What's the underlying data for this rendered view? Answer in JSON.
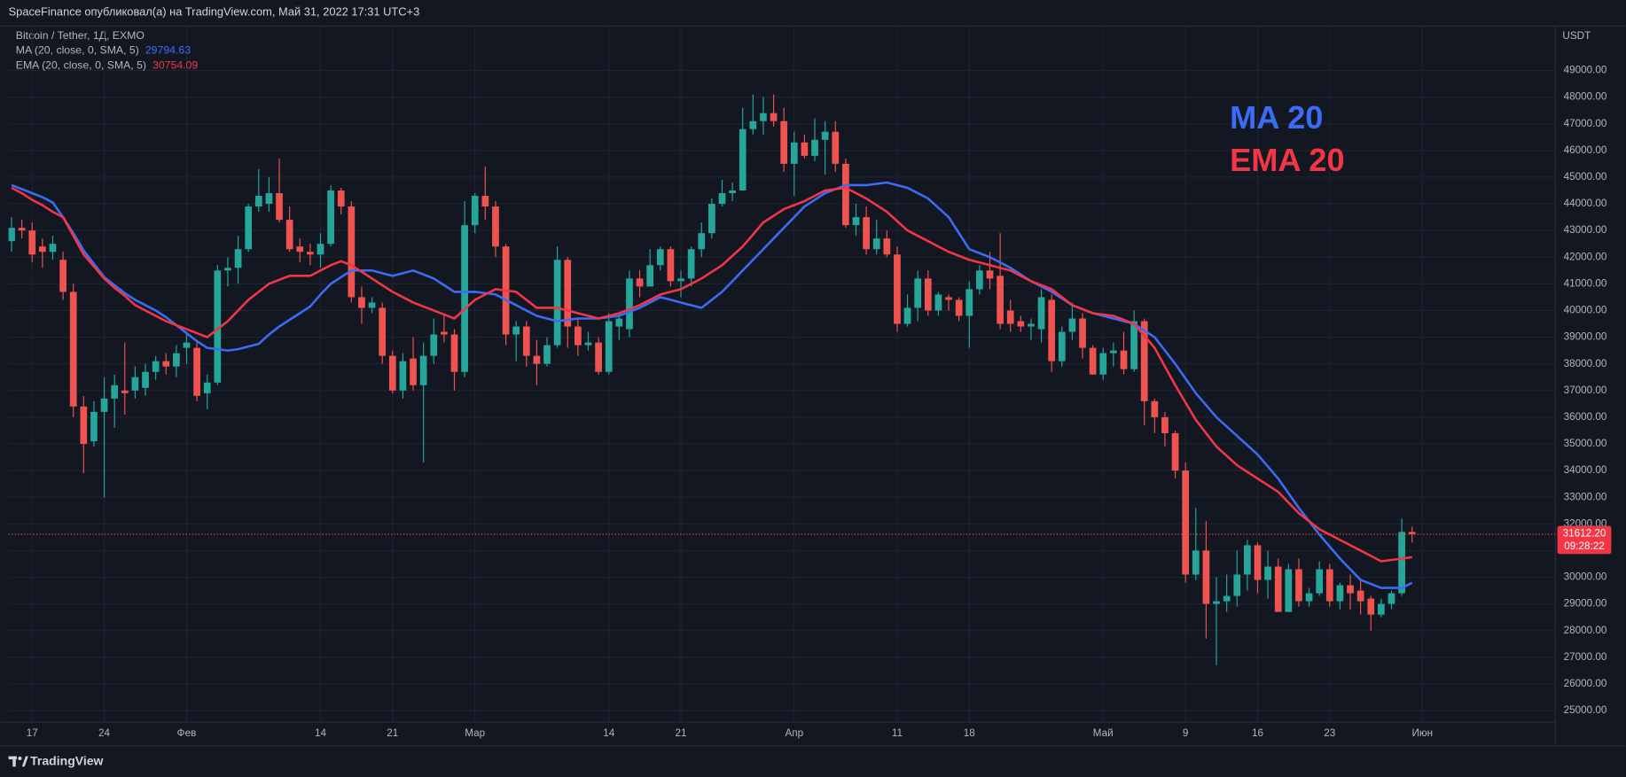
{
  "header": {
    "publisher_line": "SpaceFinance опубликовал(а) на TradingView.com, Май 31, 2022 17:31 UTC+3"
  },
  "footer": {
    "brand": "TradingView"
  },
  "chart_data": {
    "type": "candlestick",
    "title": "Bitcoin / Tether, 1Д, EXMO",
    "y_axis_label": "USDT",
    "up_color": "#26a69a",
    "down_color": "#ef5350",
    "grid": true,
    "xlim": [
      "2022-01-14",
      "2022-06-13"
    ],
    "ylim": [
      24570,
      50670
    ],
    "xticks": [
      {
        "value": "2022-01-17",
        "label": "17"
      },
      {
        "value": "2022-01-24",
        "label": "24"
      },
      {
        "value": "2022-02-01",
        "label": "Фев"
      },
      {
        "value": "2022-02-14",
        "label": "14"
      },
      {
        "value": "2022-02-21",
        "label": "21"
      },
      {
        "value": "2022-03-01",
        "label": "Мар"
      },
      {
        "value": "2022-03-14",
        "label": "14"
      },
      {
        "value": "2022-03-21",
        "label": "21"
      },
      {
        "value": "2022-04-01",
        "label": "Апр"
      },
      {
        "value": "2022-04-11",
        "label": "11"
      },
      {
        "value": "2022-04-18",
        "label": "18"
      },
      {
        "value": "2022-05-01",
        "label": "Май"
      },
      {
        "value": "2022-05-09",
        "label": "9"
      },
      {
        "value": "2022-05-16",
        "label": "16"
      },
      {
        "value": "2022-05-23",
        "label": "23"
      },
      {
        "value": "2022-06-01",
        "label": "Июн"
      }
    ],
    "yticks": [
      {
        "value": 25000,
        "label": "25000.00"
      },
      {
        "value": 26000,
        "label": "26000.00"
      },
      {
        "value": 27000,
        "label": "27000.00"
      },
      {
        "value": 28000,
        "label": "28000.00"
      },
      {
        "value": 29000,
        "label": "29000.00"
      },
      {
        "value": 30000,
        "label": "30000.00"
      },
      {
        "value": 31000,
        "label": "31000.00"
      },
      {
        "value": 32000,
        "label": "32000.00"
      },
      {
        "value": 33000,
        "label": "33000.00"
      },
      {
        "value": 34000,
        "label": "34000.00"
      },
      {
        "value": 35000,
        "label": "35000.00"
      },
      {
        "value": 36000,
        "label": "36000.00"
      },
      {
        "value": 37000,
        "label": "37000.00"
      },
      {
        "value": 38000,
        "label": "38000.00"
      },
      {
        "value": 39000,
        "label": "39000.00"
      },
      {
        "value": 40000,
        "label": "40000.00"
      },
      {
        "value": 41000,
        "label": "41000.00"
      },
      {
        "value": 42000,
        "label": "42000.00"
      },
      {
        "value": 43000,
        "label": "43000.00"
      },
      {
        "value": 44000,
        "label": "44000.00"
      },
      {
        "value": 45000,
        "label": "45000.00"
      },
      {
        "value": 46000,
        "label": "46000.00"
      },
      {
        "value": 47000,
        "label": "47000.00"
      },
      {
        "value": 48000,
        "label": "48000.00"
      },
      {
        "value": 49000,
        "label": "49000.00"
      }
    ],
    "x": [
      "2022-01-15",
      "2022-01-16",
      "2022-01-17",
      "2022-01-18",
      "2022-01-19",
      "2022-01-20",
      "2022-01-21",
      "2022-01-22",
      "2022-01-23",
      "2022-01-24",
      "2022-01-25",
      "2022-01-26",
      "2022-01-27",
      "2022-01-28",
      "2022-01-29",
      "2022-01-30",
      "2022-01-31",
      "2022-02-01",
      "2022-02-02",
      "2022-02-03",
      "2022-02-04",
      "2022-02-05",
      "2022-02-06",
      "2022-02-07",
      "2022-02-08",
      "2022-02-09",
      "2022-02-10",
      "2022-02-11",
      "2022-02-12",
      "2022-02-13",
      "2022-02-14",
      "2022-02-15",
      "2022-02-16",
      "2022-02-17",
      "2022-02-18",
      "2022-02-19",
      "2022-02-20",
      "2022-02-21",
      "2022-02-22",
      "2022-02-23",
      "2022-02-24",
      "2022-02-25",
      "2022-02-26",
      "2022-02-27",
      "2022-02-28",
      "2022-03-01",
      "2022-03-02",
      "2022-03-03",
      "2022-03-04",
      "2022-03-05",
      "2022-03-06",
      "2022-03-07",
      "2022-03-08",
      "2022-03-09",
      "2022-03-10",
      "2022-03-11",
      "2022-03-12",
      "2022-03-13",
      "2022-03-14",
      "2022-03-15",
      "2022-03-16",
      "2022-03-17",
      "2022-03-18",
      "2022-03-19",
      "2022-03-20",
      "2022-03-21",
      "2022-03-22",
      "2022-03-23",
      "2022-03-24",
      "2022-03-25",
      "2022-03-26",
      "2022-03-27",
      "2022-03-28",
      "2022-03-29",
      "2022-03-30",
      "2022-03-31",
      "2022-04-01",
      "2022-04-02",
      "2022-04-03",
      "2022-04-04",
      "2022-04-05",
      "2022-04-06",
      "2022-04-07",
      "2022-04-08",
      "2022-04-09",
      "2022-04-10",
      "2022-04-11",
      "2022-04-12",
      "2022-04-13",
      "2022-04-14",
      "2022-04-15",
      "2022-04-16",
      "2022-04-17",
      "2022-04-18",
      "2022-04-19",
      "2022-04-20",
      "2022-04-21",
      "2022-04-22",
      "2022-04-23",
      "2022-04-24",
      "2022-04-25",
      "2022-04-26",
      "2022-04-27",
      "2022-04-28",
      "2022-04-29",
      "2022-04-30",
      "2022-05-01",
      "2022-05-02",
      "2022-05-03",
      "2022-05-04",
      "2022-05-05",
      "2022-05-06",
      "2022-05-07",
      "2022-05-08",
      "2022-05-09",
      "2022-05-10",
      "2022-05-11",
      "2022-05-12",
      "2022-05-13",
      "2022-05-14",
      "2022-05-15",
      "2022-05-16",
      "2022-05-17",
      "2022-05-18",
      "2022-05-19",
      "2022-05-20",
      "2022-05-21",
      "2022-05-22",
      "2022-05-23",
      "2022-05-24",
      "2022-05-25",
      "2022-05-26",
      "2022-05-27",
      "2022-05-28",
      "2022-05-29",
      "2022-05-30",
      "2022-05-31"
    ],
    "open": [
      42600,
      43100,
      43000,
      42400,
      42200,
      41900,
      40700,
      36400,
      35100,
      36200,
      36700,
      37000,
      37000,
      37100,
      37700,
      38100,
      37900,
      38600,
      38600,
      36900,
      37300,
      41500,
      41600,
      42300,
      43900,
      44000,
      44400,
      43400,
      42400,
      42200,
      42100,
      42500,
      44500,
      43900,
      40500,
      40100,
      40100,
      38300,
      37000,
      38200,
      37200,
      38300,
      39200,
      39100,
      37700,
      43200,
      44300,
      43900,
      42400,
      39100,
      39400,
      38300,
      38000,
      38700,
      41900,
      39400,
      38700,
      38800,
      37700,
      39400,
      39300,
      41200,
      40900,
      41700,
      42300,
      41100,
      41200,
      42300,
      42900,
      44000,
      44400,
      44500,
      46800,
      47100,
      47400,
      47100,
      45500,
      46300,
      45800,
      46400,
      46700,
      45500,
      43200,
      43500,
      42300,
      42700,
      42100,
      39500,
      40100,
      41200,
      40000,
      40500,
      40400,
      39800,
      40800,
      41500,
      41300,
      40000,
      39600,
      39400,
      39300,
      40400,
      38100,
      39200,
      39700,
      38600,
      37600,
      38400,
      38500,
      37800,
      39600,
      36600,
      36000,
      35400,
      34000,
      30100,
      31000,
      29000,
      29100,
      29300,
      30100,
      31200,
      29900,
      30400,
      28700,
      30300,
      29100,
      29400,
      30300,
      29100,
      29700,
      29500,
      29200,
      28600,
      29000,
      29400,
      31700
    ],
    "high": [
      43500,
      43400,
      43300,
      42700,
      42800,
      42200,
      41000,
      36800,
      36600,
      37500,
      37600,
      38800,
      37900,
      38000,
      38300,
      38400,
      38700,
      39200,
      38900,
      37600,
      41700,
      42000,
      42800,
      44000,
      45300,
      45000,
      45700,
      43900,
      42700,
      42500,
      42900,
      44700,
      44600,
      44100,
      40900,
      40500,
      40300,
      38500,
      38400,
      39000,
      38800,
      39700,
      39800,
      39300,
      44100,
      44400,
      45400,
      44100,
      42500,
      39600,
      39600,
      38900,
      39000,
      42400,
      42000,
      39700,
      39200,
      39000,
      39900,
      39900,
      41500,
      41500,
      42300,
      42400,
      42400,
      41500,
      42400,
      43300,
      44200,
      44900,
      44800,
      47600,
      48100,
      48000,
      48100,
      47600,
      46700,
      46600,
      47200,
      47100,
      47100,
      45700,
      44000,
      43900,
      43400,
      43000,
      42400,
      40600,
      41500,
      41500,
      40700,
      40600,
      40500,
      41100,
      41700,
      42200,
      42900,
      40400,
      39800,
      39700,
      40800,
      40600,
      39400,
      40300,
      39900,
      38700,
      38600,
      38800,
      39200,
      40000,
      39700,
      36700,
      36200,
      35500,
      34300,
      32600,
      32100,
      30000,
      30100,
      31000,
      31400,
      31300,
      31000,
      30700,
      30500,
      30700,
      29600,
      30600,
      30500,
      29800,
      30100,
      29900,
      29300,
      29200,
      29500,
      32200,
      31900
    ],
    "low": [
      42200,
      42700,
      41800,
      41600,
      41900,
      40400,
      36000,
      33900,
      34900,
      33000,
      35600,
      36100,
      36700,
      36800,
      37400,
      37600,
      37500,
      38000,
      36600,
      36300,
      37200,
      40900,
      41000,
      42200,
      43700,
      43700,
      43300,
      42200,
      41800,
      41700,
      41600,
      42400,
      43600,
      40300,
      39500,
      39900,
      38000,
      36900,
      36700,
      37000,
      34300,
      38000,
      38800,
      37000,
      37500,
      42900,
      43400,
      42000,
      38700,
      38100,
      37900,
      37200,
      37900,
      38600,
      38600,
      38300,
      38500,
      37600,
      37600,
      38900,
      39000,
      40500,
      40900,
      41500,
      40900,
      40500,
      40900,
      42000,
      42700,
      43900,
      44100,
      44500,
      46600,
      46600,
      46900,
      45200,
      44300,
      45700,
      45600,
      45100,
      45200,
      43100,
      42800,
      42100,
      42100,
      42000,
      39200,
      39400,
      39600,
      39800,
      39800,
      40000,
      39600,
      38600,
      40600,
      40800,
      39300,
      39200,
      39200,
      38900,
      38800,
      37700,
      37900,
      38900,
      38200,
      37600,
      37400,
      37900,
      37600,
      37700,
      35700,
      35400,
      34900,
      33700,
      29800,
      29900,
      27700,
      26700,
      28700,
      28900,
      29500,
      29400,
      29200,
      28700,
      28700,
      28900,
      28900,
      29300,
      28900,
      28800,
      28800,
      28600,
      28000,
      28500,
      28800,
      29300,
      31300
    ],
    "close": [
      43100,
      43000,
      42100,
      42200,
      42500,
      40700,
      36400,
      35000,
      36200,
      36700,
      37200,
      36900,
      37500,
      37700,
      38100,
      37900,
      38400,
      38800,
      36800,
      37300,
      41500,
      41600,
      42300,
      43900,
      44300,
      44400,
      43400,
      42300,
      42200,
      42100,
      42500,
      44500,
      43900,
      40500,
      40100,
      40300,
      38300,
      37000,
      38100,
      37200,
      38300,
      39100,
      39100,
      37700,
      43200,
      44300,
      43900,
      42400,
      39100,
      39400,
      38300,
      38000,
      38700,
      41900,
      39400,
      38700,
      38800,
      37700,
      39600,
      39700,
      41200,
      40900,
      41700,
      42300,
      41100,
      41200,
      42300,
      42900,
      44000,
      44400,
      44500,
      46800,
      47100,
      47400,
      47100,
      45500,
      46300,
      45800,
      46400,
      46700,
      45500,
      43200,
      43500,
      42300,
      42700,
      42100,
      39500,
      40100,
      41200,
      40000,
      40600,
      40400,
      39800,
      40800,
      41500,
      41200,
      39500,
      39500,
      39400,
      39500,
      40500,
      38100,
      39200,
      39700,
      38600,
      37600,
      38400,
      38500,
      37800,
      39600,
      36600,
      36000,
      35400,
      34000,
      30100,
      31000,
      29000,
      29100,
      29300,
      30100,
      31200,
      29900,
      30400,
      28700,
      30300,
      29100,
      29400,
      30300,
      29100,
      29700,
      29400,
      29100,
      28600,
      29000,
      29400,
      31700,
      31612.2
    ],
    "series": [
      {
        "name": "MA (20, close, 0, SMA, 5)",
        "color": "#3a6cf4",
        "values": [
          44700,
          44550,
          44400,
          44250,
          44050,
          43500,
          42900,
          42250,
          41750,
          41250,
          40950,
          40650,
          40400,
          40200,
          40000,
          39750,
          39450,
          39150,
          38850,
          38600,
          38550,
          38500,
          38550,
          38650,
          38750,
          39100,
          39400,
          39650,
          39900,
          40150,
          40600,
          41000,
          41250,
          41500,
          41500,
          41500,
          41400,
          41300,
          41400,
          41500,
          41350,
          41200,
          40950,
          40700,
          40700,
          40700,
          40650,
          40600,
          40400,
          40200,
          40000,
          39800,
          39700,
          39600,
          39650,
          39700,
          39700,
          39700,
          39750,
          39800,
          39950,
          40100,
          40300,
          40500,
          40400,
          40300,
          40200,
          40100,
          40400,
          40700,
          41100,
          41500,
          41900,
          42300,
          42700,
          43100,
          43500,
          43900,
          44150,
          44400,
          44550,
          44700,
          44700,
          44700,
          44750,
          44800,
          44700,
          44600,
          44400,
          44200,
          43850,
          43500,
          42900,
          42300,
          42150,
          42000,
          41800,
          41600,
          41350,
          41100,
          40900,
          40700,
          40450,
          40200,
          40050,
          39900,
          39800,
          39700,
          39600,
          39500,
          39250,
          39000,
          38500,
          38000,
          37450,
          36900,
          36450,
          36000,
          35650,
          35300,
          34950,
          34600,
          34150,
          33700,
          33150,
          32600,
          32100,
          31600,
          31150,
          30700,
          30300,
          29900,
          29750,
          29600,
          29600,
          29600,
          29794.63
        ]
      },
      {
        "name": "EMA (20, close, 0, SMA, 5)",
        "color": "#f23645",
        "values": [
          44600,
          44400,
          44150,
          43950,
          43700,
          43500,
          42800,
          42100,
          41650,
          41200,
          40850,
          40550,
          40200,
          40000,
          39800,
          39600,
          39450,
          39300,
          39150,
          39000,
          39300,
          39600,
          40000,
          40400,
          40700,
          41000,
          41150,
          41300,
          41300,
          41300,
          41500,
          41700,
          41850,
          41700,
          41450,
          41200,
          40950,
          40700,
          40500,
          40300,
          40150,
          40000,
          39850,
          39700,
          40050,
          40400,
          40600,
          40800,
          40750,
          40700,
          40400,
          40100,
          40100,
          40100,
          40000,
          39900,
          39800,
          39700,
          39800,
          39900,
          40050,
          40200,
          40400,
          40600,
          40700,
          40800,
          41000,
          41200,
          41450,
          41700,
          42050,
          42400,
          42850,
          43300,
          43550,
          43800,
          43950,
          44100,
          44300,
          44500,
          44550,
          44600,
          44400,
          44200,
          43950,
          43700,
          43350,
          43000,
          42800,
          42600,
          42400,
          42200,
          42050,
          41900,
          41800,
          41700,
          41600,
          41500,
          41300,
          41100,
          40950,
          40800,
          40500,
          40200,
          40050,
          39900,
          39850,
          39800,
          39650,
          39500,
          39050,
          38600,
          37900,
          37200,
          36550,
          35900,
          35400,
          34900,
          34550,
          34200,
          33950,
          33700,
          33450,
          33200,
          32800,
          32400,
          32100,
          31800,
          31600,
          31400,
          31200,
          31000,
          30800,
          30600,
          30650,
          30700,
          30754.09
        ]
      }
    ],
    "last_price": {
      "value": 31612.2,
      "label": "31612.20"
    },
    "countdown": "09:28:22",
    "annotations": [
      {
        "text": "MA 20",
        "color": "#3a6cf4"
      },
      {
        "text": "EMA 20",
        "color": "#f23645"
      }
    ]
  }
}
